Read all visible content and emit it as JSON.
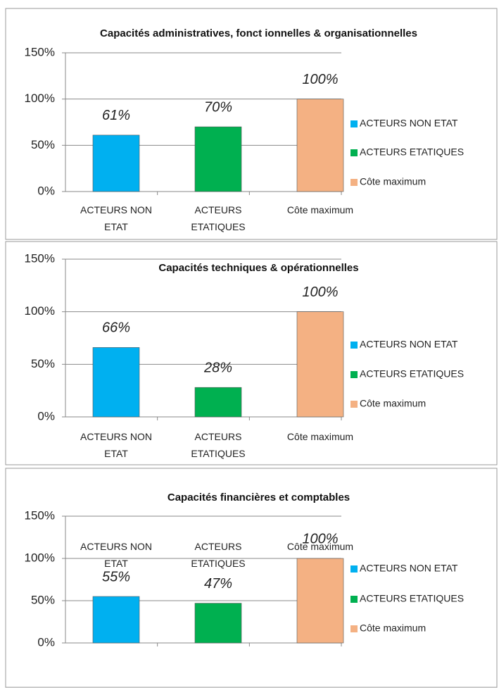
{
  "chart_data": [
    {
      "type": "bar",
      "title": "Capacités administratives, fonct ionnelles & organisationnelles",
      "categories": [
        "ACTEURS NON ETAT",
        "ACTEURS ETATIQUES",
        "Côte maximum"
      ],
      "series": [
        {
          "name": "ACTEURS NON ETAT",
          "color": "#00b0f0",
          "values": [
            61,
            null,
            null
          ],
          "value_labels": [
            "61%",
            null,
            null
          ]
        },
        {
          "name": "ACTEURS ETATIQUES",
          "color": "#00b050",
          "values": [
            null,
            70,
            null
          ],
          "value_labels": [
            null,
            "70%",
            null
          ]
        },
        {
          "name": "Côte maximum",
          "color": "#f4b183",
          "values": [
            null,
            null,
            100
          ],
          "value_labels": [
            null,
            null,
            "100%"
          ]
        }
      ],
      "ylim": [
        0,
        150
      ],
      "yticks": [
        {
          "value": 0,
          "label": "0%"
        },
        {
          "value": 50,
          "label": "50%"
        },
        {
          "value": 100,
          "label": "100%"
        },
        {
          "value": 150,
          "label": "150%"
        }
      ],
      "grid": true,
      "legend": "right"
    },
    {
      "type": "bar",
      "title": "Capacités techniques & opérationnelles",
      "categories": [
        "ACTEURS NON ETAT",
        "ACTEURS ETATIQUES",
        "Côte maximum"
      ],
      "series": [
        {
          "name": "ACTEURS NON ETAT",
          "color": "#00b0f0",
          "values": [
            66,
            null,
            null
          ],
          "value_labels": [
            "66%",
            null,
            null
          ]
        },
        {
          "name": "ACTEURS ETATIQUES",
          "color": "#00b050",
          "values": [
            null,
            28,
            null
          ],
          "value_labels": [
            null,
            "28%",
            null
          ]
        },
        {
          "name": "Côte maximum",
          "color": "#f4b183",
          "values": [
            null,
            null,
            100
          ],
          "value_labels": [
            null,
            null,
            "100%"
          ]
        }
      ],
      "ylim": [
        0,
        150
      ],
      "yticks": [
        {
          "value": 0,
          "label": "0%"
        },
        {
          "value": 50,
          "label": "50%"
        },
        {
          "value": 100,
          "label": "100%"
        },
        {
          "value": 150,
          "label": "150%"
        }
      ],
      "grid": true,
      "legend": "right"
    },
    {
      "type": "bar",
      "title": "Capacités financières et comptables",
      "categories": [
        "ACTEURS NON ETAT",
        "ACTEURS ETATIQUES",
        "Côte maximum"
      ],
      "series": [
        {
          "name": "ACTEURS NON ETAT",
          "color": "#00b0f0",
          "values": [
            55,
            null,
            null
          ],
          "value_labels": [
            "55%",
            null,
            null
          ]
        },
        {
          "name": "ACTEURS ETATIQUES",
          "color": "#00b050",
          "values": [
            null,
            47,
            null
          ],
          "value_labels": [
            null,
            "47%",
            null
          ]
        },
        {
          "name": "Côte maximum",
          "color": "#f4b183",
          "values": [
            null,
            null,
            100
          ],
          "value_labels": [
            null,
            null,
            "100%"
          ]
        }
      ],
      "ylim": [
        0,
        150
      ],
      "yticks": [
        {
          "value": 0,
          "label": "0%"
        },
        {
          "value": 50,
          "label": "50%"
        },
        {
          "value": 100,
          "label": "100%"
        },
        {
          "value": 150,
          "label": "150%"
        }
      ],
      "grid": true,
      "legend": "right"
    }
  ]
}
